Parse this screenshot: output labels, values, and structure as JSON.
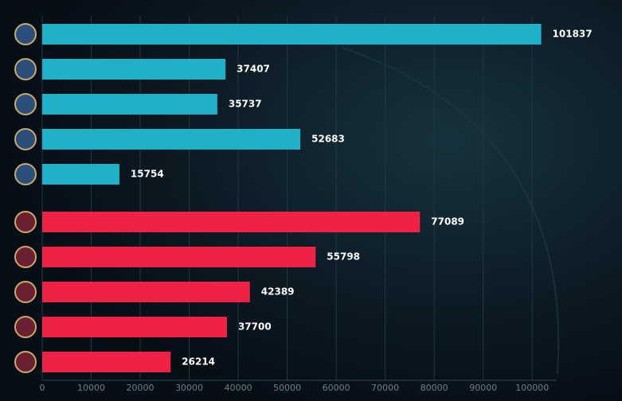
{
  "chart_data": {
    "type": "barh",
    "categories": [
      null,
      null,
      null,
      null,
      null,
      null,
      null,
      null,
      null,
      null
    ],
    "values": [
      101837,
      37407,
      35737,
      52683,
      15754,
      77089,
      55798,
      42389,
      37700,
      26214
    ],
    "colors": [
      "#1fb1c8",
      "#1fb1c8",
      "#1fb1c8",
      "#1fb1c8",
      "#1fb1c8",
      "#ef2145",
      "#ef2145",
      "#ef2145",
      "#ef2145",
      "#ef2145"
    ],
    "xlim": [
      0,
      105000
    ],
    "xticks": [
      0,
      10000,
      20000,
      30000,
      40000,
      50000,
      60000,
      70000,
      80000,
      90000,
      100000
    ],
    "grid": true
  }
}
